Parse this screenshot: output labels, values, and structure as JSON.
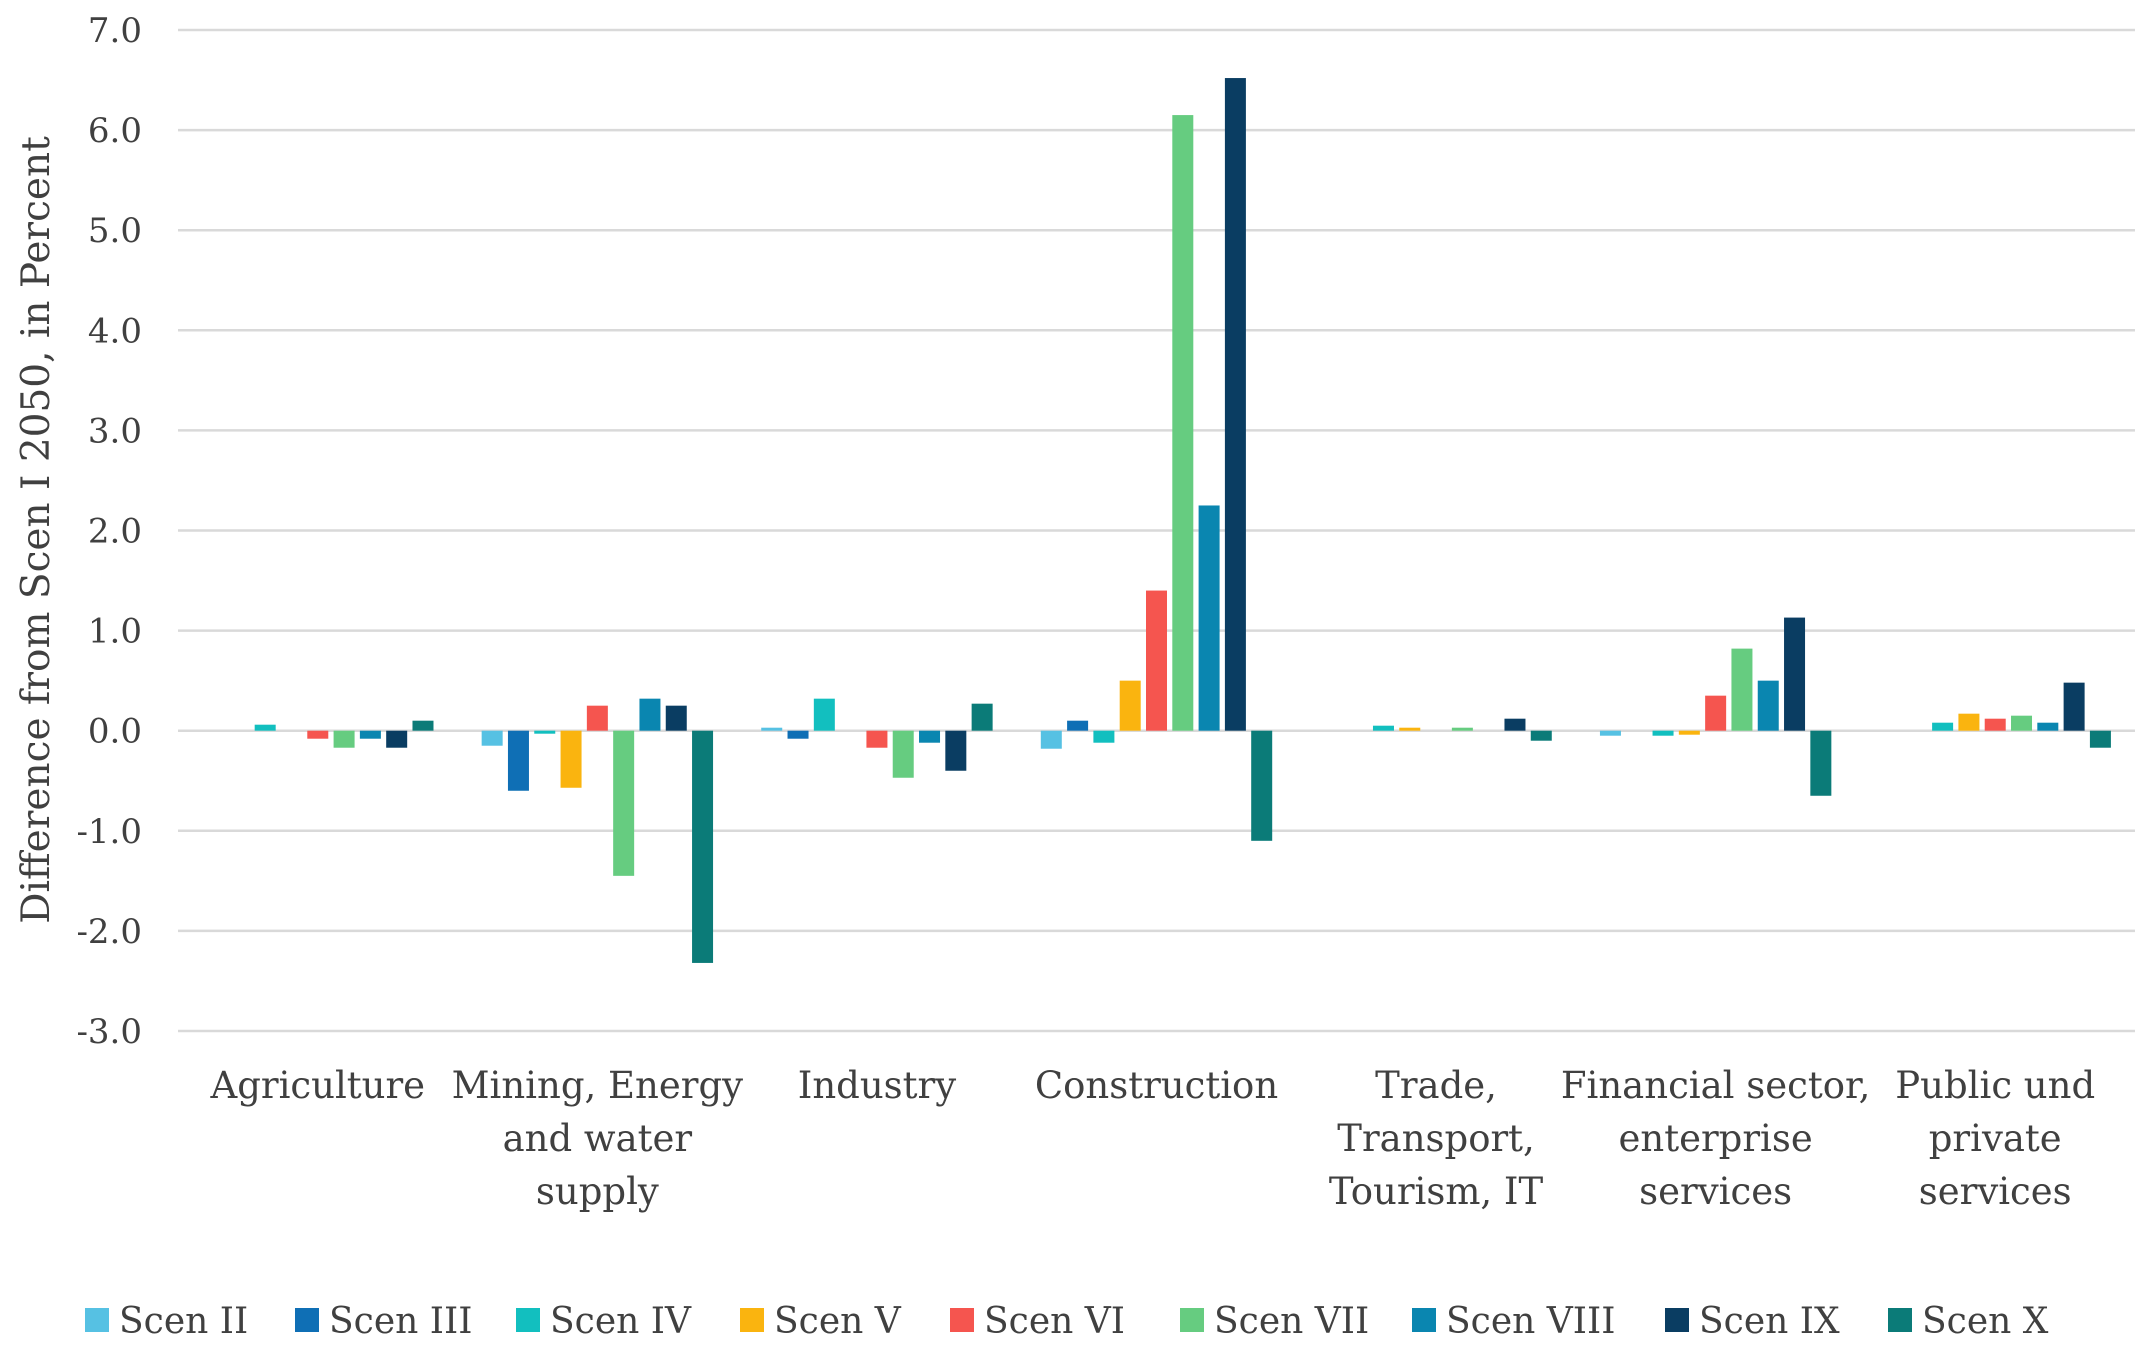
{
  "chart_data": {
    "type": "bar",
    "title": "",
    "xlabel": "",
    "ylabel": "Difference from Scen I 2050, in Percent",
    "ylim": [
      -3.0,
      7.0
    ],
    "yticks": [
      "7.0",
      "6.0",
      "5.0",
      "4.0",
      "3.0",
      "2.0",
      "1.0",
      "0.0",
      "-1.0",
      "-2.0",
      "-3.0"
    ],
    "ytick_values": [
      7,
      6,
      5,
      4,
      3,
      2,
      1,
      0,
      -1,
      -2,
      -3
    ],
    "grid": true,
    "legend_position": "bottom",
    "categories": [
      "Agriculture",
      "Mining, Energy and water supply",
      "Industry",
      "Construction",
      "Trade, Transport, Tourism, IT",
      "Financial sector, enterprise services",
      "Public und private services"
    ],
    "category_lines": [
      [
        "Agriculture"
      ],
      [
        "Mining, Energy",
        "and water",
        "supply"
      ],
      [
        "Industry"
      ],
      [
        "Construction"
      ],
      [
        "Trade,",
        "Transport,",
        "Tourism, IT"
      ],
      [
        "Financial sector,",
        "enterprise",
        "services"
      ],
      [
        "Public und",
        "private",
        "services"
      ]
    ],
    "series": [
      {
        "name": "Scen II",
        "color": "#56C1E3",
        "values": [
          0.0,
          -0.15,
          0.03,
          -0.18,
          0.0,
          -0.05,
          0.0
        ]
      },
      {
        "name": "Scen III",
        "color": "#0F6FB5",
        "values": [
          0.0,
          -0.6,
          -0.08,
          0.1,
          0.0,
          0.0,
          0.0
        ]
      },
      {
        "name": "Scen IV",
        "color": "#12BFBF",
        "values": [
          0.06,
          -0.03,
          0.32,
          -0.12,
          0.05,
          -0.05,
          0.08
        ]
      },
      {
        "name": "Scen V",
        "color": "#FAB40F",
        "values": [
          0.0,
          -0.57,
          0.0,
          0.5,
          0.03,
          -0.04,
          0.17
        ]
      },
      {
        "name": "Scen VI",
        "color": "#F5554F",
        "values": [
          -0.08,
          0.25,
          -0.17,
          1.4,
          0.0,
          0.35,
          0.12
        ]
      },
      {
        "name": "Scen VII",
        "color": "#66CC80",
        "values": [
          -0.17,
          -1.45,
          -0.47,
          6.15,
          0.03,
          0.82,
          0.15
        ]
      },
      {
        "name": "Scen VIII",
        "color": "#0A86B0",
        "values": [
          -0.08,
          0.32,
          -0.12,
          2.25,
          0.0,
          0.5,
          0.08
        ]
      },
      {
        "name": "Scen IX",
        "color": "#0A3D62",
        "values": [
          -0.17,
          0.25,
          -0.4,
          6.52,
          0.12,
          1.13,
          0.48
        ]
      },
      {
        "name": "Scen X",
        "color": "#0B7B78",
        "values": [
          0.1,
          -2.32,
          0.27,
          -1.1,
          -0.1,
          -0.65,
          -0.17
        ]
      }
    ]
  }
}
